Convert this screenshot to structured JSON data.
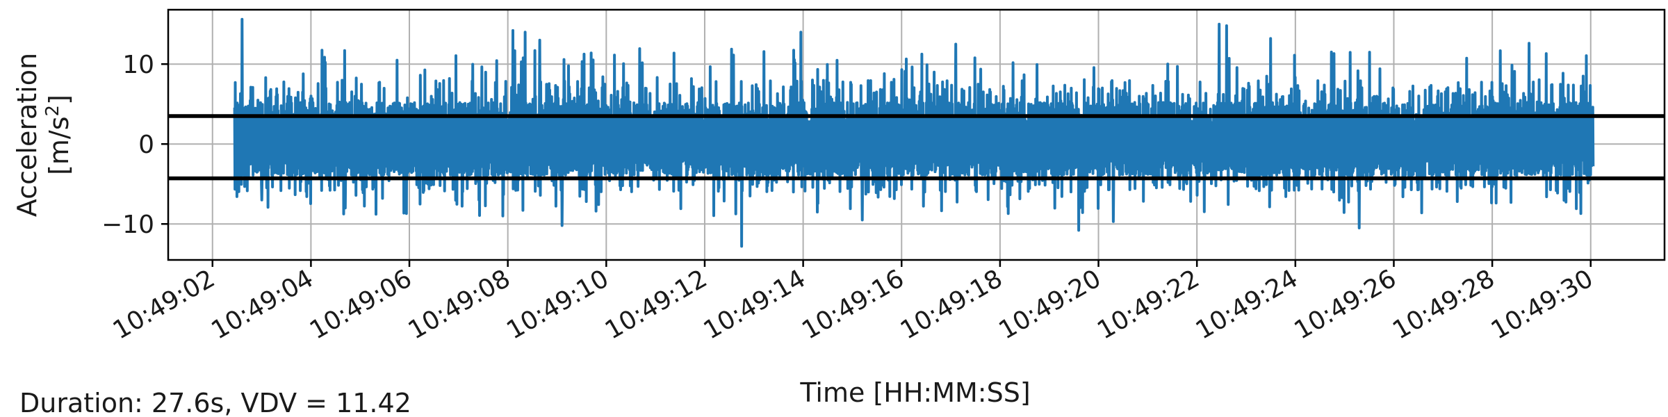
{
  "chart_data": {
    "type": "line",
    "title": "",
    "xlabel": "Time [HH:MM:SS]",
    "ylabel_line1": "Acceleration",
    "ylabel_line2_base": "[m/s",
    "ylabel_line2_sup": "2",
    "ylabel_line2_end": "]",
    "x_ticks": [
      "10:49:02",
      "10:49:04",
      "10:49:06",
      "10:49:08",
      "10:49:10",
      "10:49:12",
      "10:49:14",
      "10:49:16",
      "10:49:18",
      "10:49:20",
      "10:49:22",
      "10:49:24",
      "10:49:26",
      "10:49:28",
      "10:49:30"
    ],
    "x_tick_seconds": [
      2,
      4,
      6,
      8,
      10,
      12,
      14,
      16,
      18,
      20,
      22,
      24,
      26,
      28,
      30
    ],
    "xlim_seconds": [
      1.1,
      31.5
    ],
    "y_ticks": [
      10,
      0,
      -10
    ],
    "y_tick_labels": [
      "10",
      "0",
      "−10"
    ],
    "ylim": [
      -14.5,
      16.8
    ],
    "grid": true,
    "series": [
      {
        "color": "#1f77b4",
        "x_start_seconds": 2.45,
        "x_end_seconds": 30.05,
        "typical_band": [
          -5.5,
          5.5
        ],
        "max_value": 15.6,
        "min_value": -12.8
      }
    ],
    "reference_lines": [
      {
        "y": 3.5,
        "color": "#000000"
      },
      {
        "y": -4.3,
        "color": "#000000"
      }
    ]
  },
  "footer": {
    "summary": "Duration: 27.6s, VDV = 11.42"
  }
}
